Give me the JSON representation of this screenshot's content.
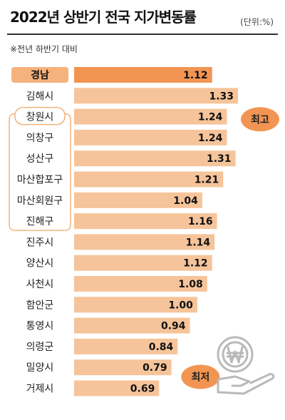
{
  "header": {
    "title": "2022년 상반기 전국 지가변동률",
    "unit": "(단위:%)",
    "note": "※전년 하반기 대비"
  },
  "colors": {
    "bar": "#f6c49a",
    "bar_highlight": "#f29552",
    "badge": "#f29552",
    "label_box": "#f0a667",
    "highlight_label_bg": "#f6b27d",
    "icon": "#b9b9b9"
  },
  "chart_data": {
    "type": "bar",
    "orientation": "horizontal",
    "title": "2022년 상반기 전국 지가변동률",
    "categories": [
      "경남",
      "김해시",
      "창원시",
      "의창구",
      "성산구",
      "마산합포구",
      "마산회원구",
      "진해구",
      "진주시",
      "양산시",
      "사천시",
      "함안군",
      "통영시",
      "의령군",
      "밀양시",
      "거제시"
    ],
    "values": [
      1.12,
      1.33,
      1.24,
      1.24,
      1.31,
      1.21,
      1.04,
      1.16,
      1.14,
      1.12,
      1.08,
      1.0,
      0.94,
      0.84,
      0.79,
      0.69
    ],
    "value_labels": [
      "1.12",
      "1.33",
      "1.24",
      "1.24",
      "1.31",
      "1.21",
      "1.04",
      "1.16",
      "1.14",
      "1.12",
      "1.08",
      "1.00",
      "0.94",
      "0.84",
      "0.79",
      "0.69"
    ],
    "highlight_category": "경남",
    "grouped_under": "창원시",
    "group_members": [
      "창원시",
      "의창구",
      "성산구",
      "마산합포구",
      "마산회원구",
      "진해구"
    ],
    "annotations": [
      {
        "text": "최고",
        "category": "김해시"
      },
      {
        "text": "최저",
        "category": "거제시"
      }
    ],
    "xlim": [
      0,
      1.33
    ],
    "grid": false,
    "legend": "none"
  },
  "icon": "won-coin-in-hand-icon"
}
